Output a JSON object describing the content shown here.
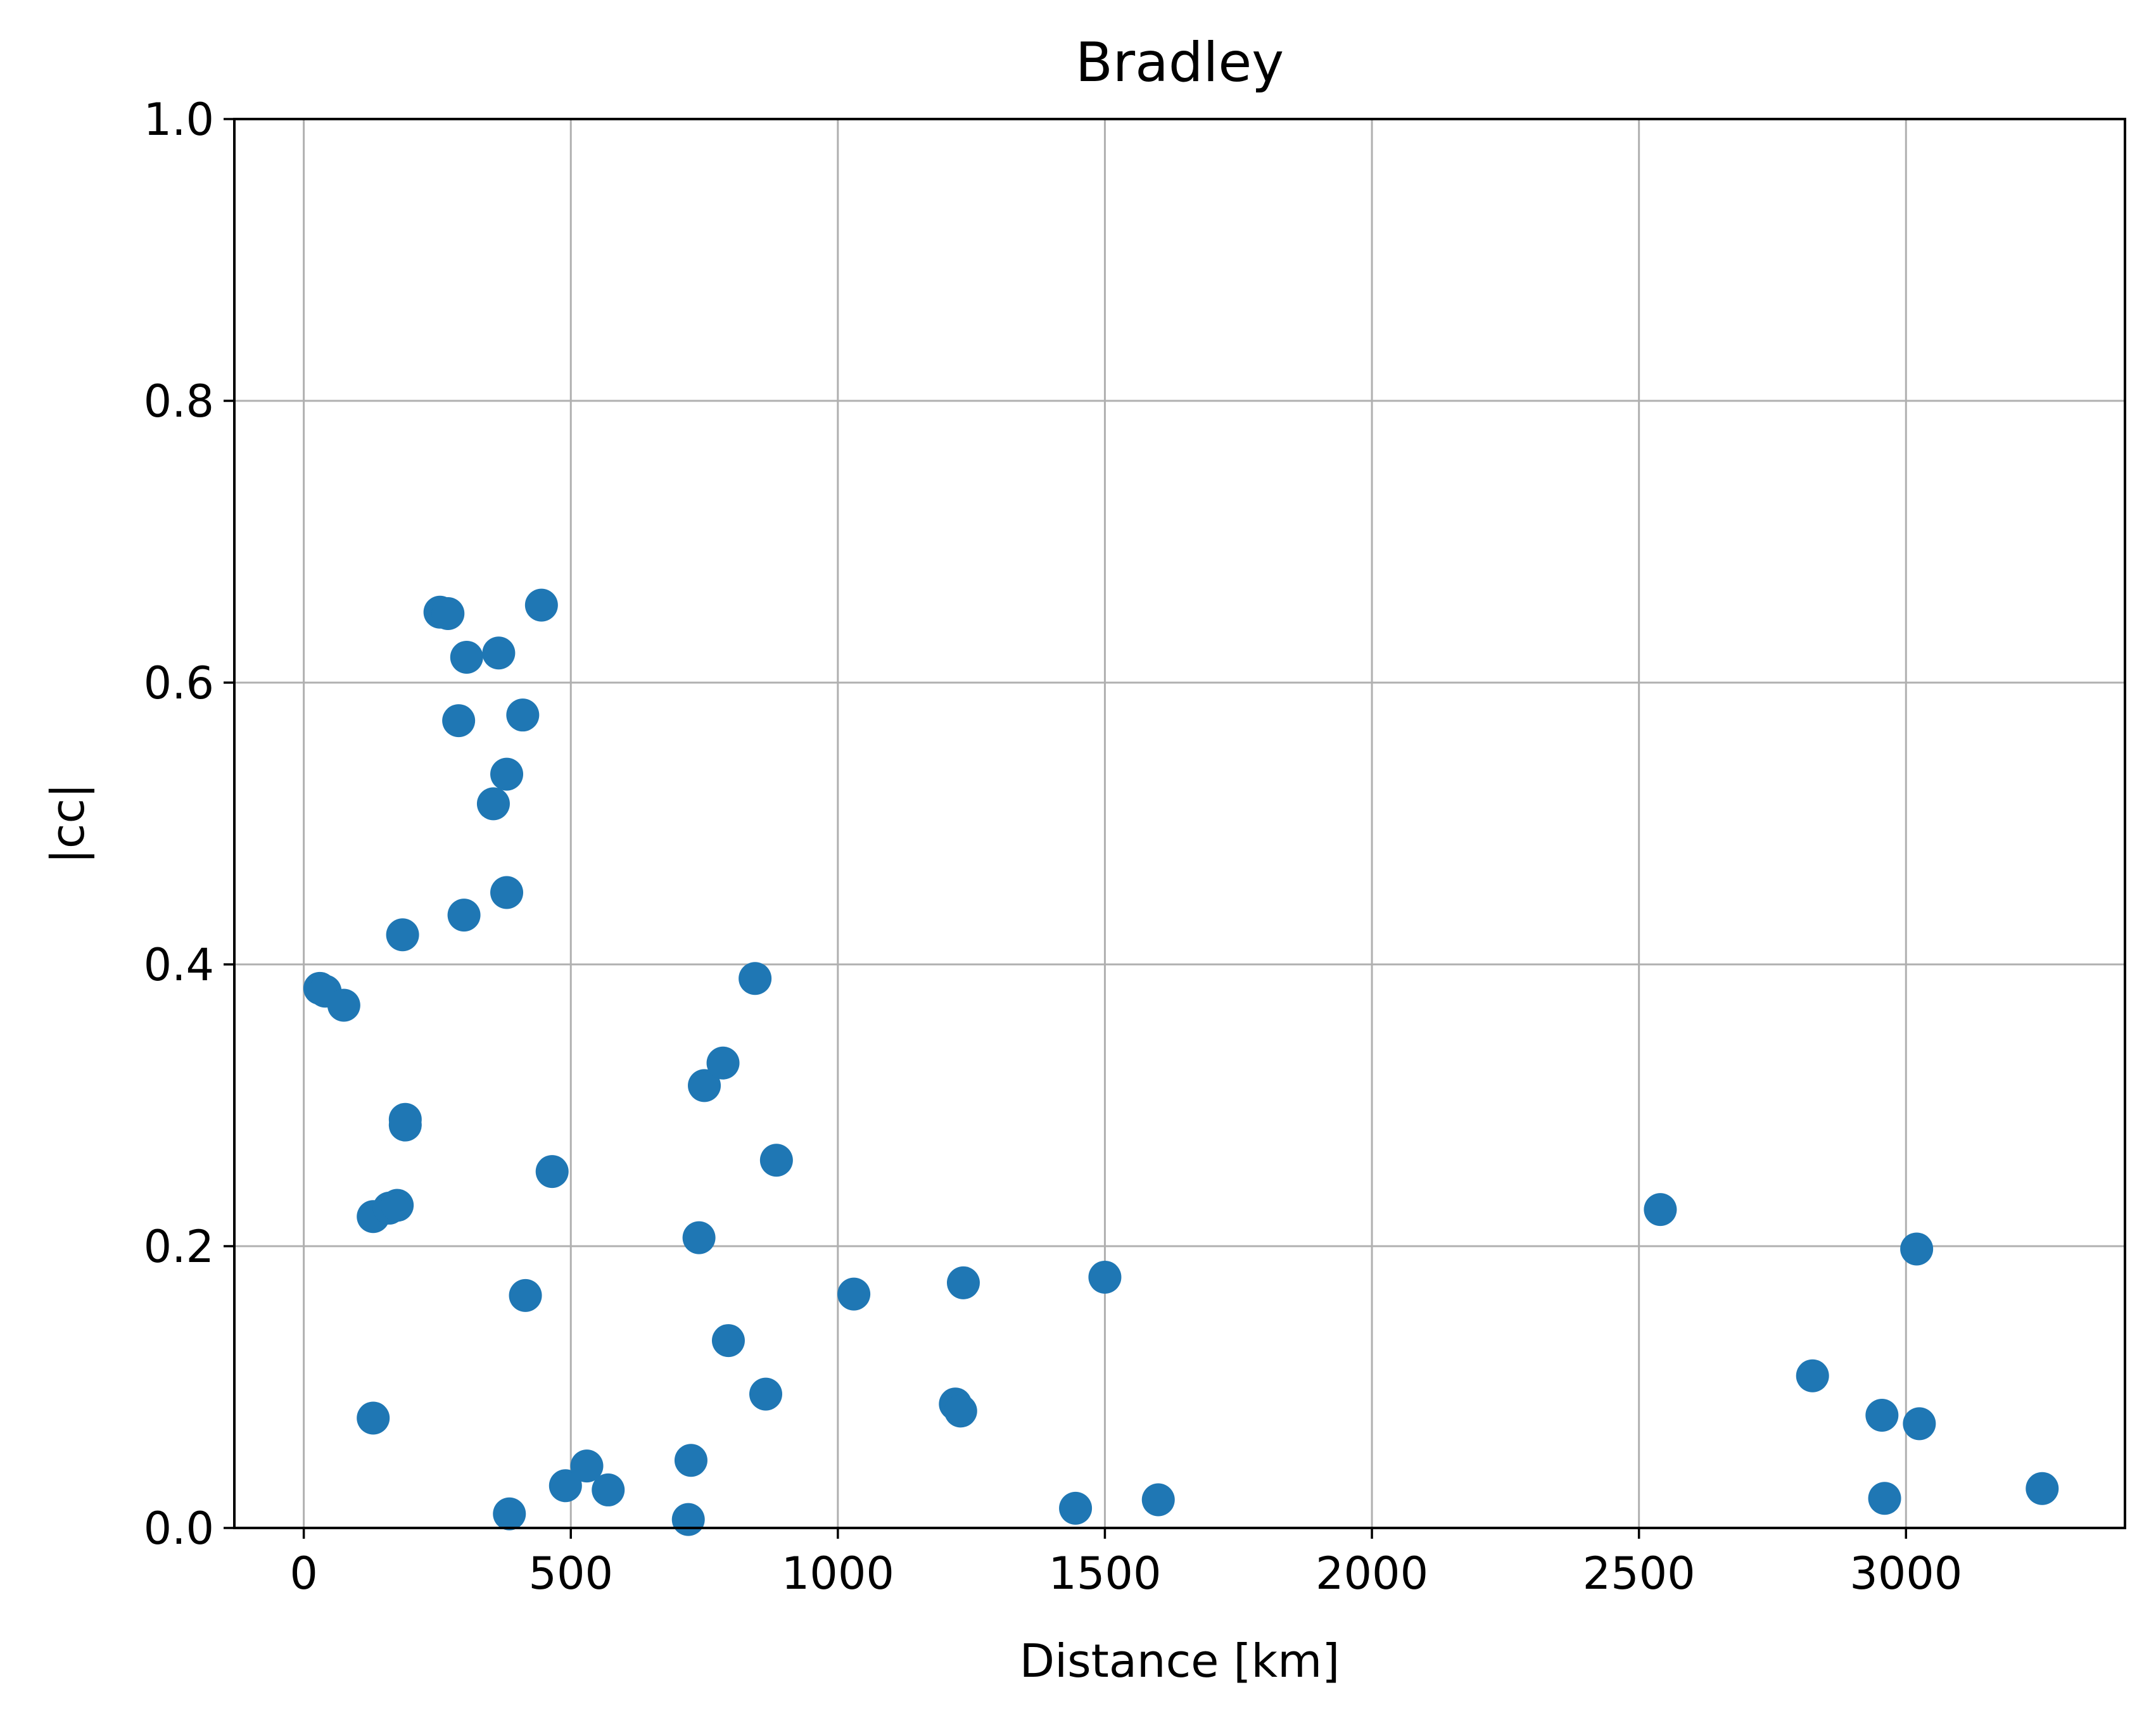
{
  "chart_data": {
    "type": "scatter",
    "title": "Bradley",
    "xlabel": "Distance [km]",
    "ylabel": "|cc|",
    "xlim": [
      -130,
      3410
    ],
    "ylim": [
      0.0,
      1.0
    ],
    "xticks": [
      0,
      500,
      1000,
      1500,
      2000,
      2500,
      3000
    ],
    "xtick_labels": [
      "0",
      "500",
      "1000",
      "1500",
      "2000",
      "2500",
      "3000"
    ],
    "yticks": [
      0.0,
      0.2,
      0.4,
      0.6,
      0.8,
      1.0
    ],
    "ytick_labels": [
      "0.0",
      "0.2",
      "0.4",
      "0.6",
      "0.8",
      "1.0"
    ],
    "grid": true,
    "marker_color": "#1f77b4",
    "series": [
      {
        "points": [
          [
            30,
            0.383
          ],
          [
            40,
            0.381
          ],
          [
            75,
            0.371
          ],
          [
            130,
            0.221
          ],
          [
            130,
            0.078
          ],
          [
            160,
            0.227
          ],
          [
            175,
            0.229
          ],
          [
            185,
            0.421
          ],
          [
            190,
            0.29
          ],
          [
            190,
            0.286
          ],
          [
            255,
            0.65
          ],
          [
            270,
            0.649
          ],
          [
            290,
            0.573
          ],
          [
            300,
            0.435
          ],
          [
            305,
            0.618
          ],
          [
            355,
            0.514
          ],
          [
            365,
            0.621
          ],
          [
            380,
            0.535
          ],
          [
            380,
            0.451
          ],
          [
            385,
            0.01
          ],
          [
            410,
            0.577
          ],
          [
            415,
            0.165
          ],
          [
            445,
            0.655
          ],
          [
            465,
            0.253
          ],
          [
            490,
            0.03
          ],
          [
            530,
            0.044
          ],
          [
            570,
            0.027
          ],
          [
            720,
            0.006
          ],
          [
            725,
            0.048
          ],
          [
            740,
            0.206
          ],
          [
            750,
            0.314
          ],
          [
            785,
            0.33
          ],
          [
            795,
            0.133
          ],
          [
            845,
            0.39
          ],
          [
            865,
            0.095
          ],
          [
            885,
            0.261
          ],
          [
            1030,
            0.166
          ],
          [
            1220,
            0.088
          ],
          [
            1230,
            0.083
          ],
          [
            1235,
            0.174
          ],
          [
            1445,
            0.014
          ],
          [
            1500,
            0.178
          ],
          [
            1600,
            0.02
          ],
          [
            2540,
            0.226
          ],
          [
            2825,
            0.108
          ],
          [
            2955,
            0.08
          ],
          [
            2960,
            0.021
          ],
          [
            3020,
            0.198
          ],
          [
            3025,
            0.074
          ],
          [
            3255,
            0.028
          ]
        ]
      }
    ]
  }
}
